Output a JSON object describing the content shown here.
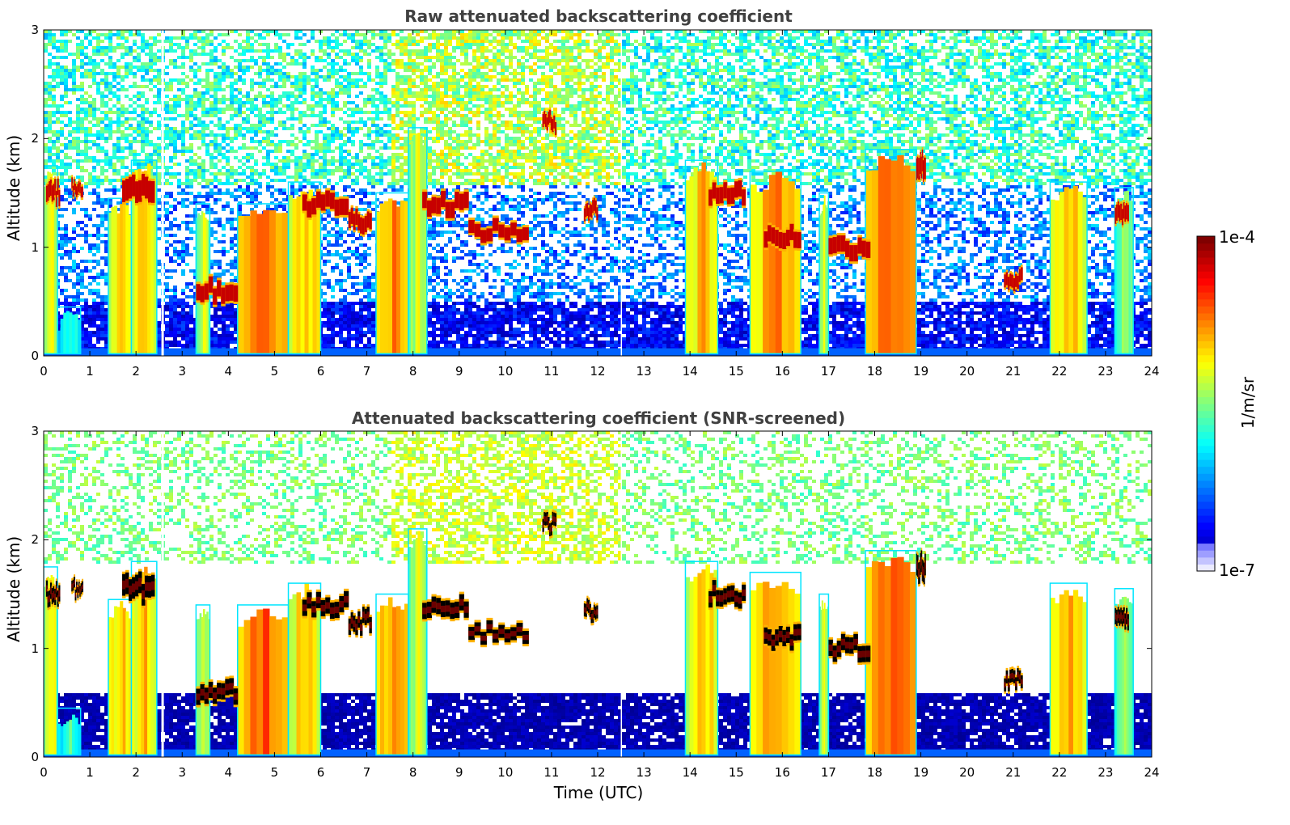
{
  "chart_data": [
    {
      "type": "heatmap",
      "title": "Raw attenuated backscattering coefficient",
      "xlabel": "",
      "ylabel": "Altitude (km)",
      "xlim": [
        0,
        24
      ],
      "ylim": [
        0,
        3
      ],
      "xticks": [
        "0",
        "1",
        "2",
        "3",
        "4",
        "5",
        "6",
        "7",
        "8",
        "9",
        "10",
        "11",
        "12",
        "13",
        "14",
        "15",
        "16",
        "17",
        "18",
        "19",
        "20",
        "21",
        "22",
        "23",
        "24"
      ],
      "yticks": [
        "0",
        "1",
        "2",
        "3"
      ],
      "screened": false,
      "columns": [
        {
          "t0": 0.0,
          "t1": 0.3,
          "top": 1.75,
          "i": 0.65
        },
        {
          "t0": 0.3,
          "t1": 0.8,
          "top": 0.45,
          "i": 0.45
        },
        {
          "t0": 1.4,
          "t1": 1.9,
          "top": 1.45,
          "i": 0.7
        },
        {
          "t0": 1.9,
          "t1": 2.45,
          "top": 1.8,
          "i": 0.7
        },
        {
          "t0": 3.3,
          "t1": 3.6,
          "top": 1.4,
          "i": 0.6
        },
        {
          "t0": 4.2,
          "t1": 5.3,
          "top": 1.4,
          "i": 0.8
        },
        {
          "t0": 5.3,
          "t1": 6.0,
          "top": 1.6,
          "i": 0.7
        },
        {
          "t0": 7.2,
          "t1": 7.9,
          "top": 1.5,
          "i": 0.75
        },
        {
          "t0": 7.9,
          "t1": 8.3,
          "top": 2.1,
          "i": 0.6
        },
        {
          "t0": 13.9,
          "t1": 14.6,
          "top": 1.8,
          "i": 0.7
        },
        {
          "t0": 15.3,
          "t1": 16.4,
          "top": 1.7,
          "i": 0.75
        },
        {
          "t0": 16.8,
          "t1": 17.0,
          "top": 1.5,
          "i": 0.6
        },
        {
          "t0": 17.8,
          "t1": 18.9,
          "top": 1.9,
          "i": 0.8
        },
        {
          "t0": 21.8,
          "t1": 22.6,
          "top": 1.6,
          "i": 0.7
        },
        {
          "t0": 23.2,
          "t1": 23.6,
          "top": 1.55,
          "i": 0.55
        }
      ],
      "layers": [
        {
          "t0": 0.05,
          "t1": 0.35,
          "alt": 1.5,
          "h": 0.15
        },
        {
          "t0": 0.6,
          "t1": 0.85,
          "alt": 1.55,
          "h": 0.1
        },
        {
          "t0": 1.7,
          "t1": 2.4,
          "alt": 1.55,
          "h": 0.2
        },
        {
          "t0": 3.3,
          "t1": 4.2,
          "alt": 0.6,
          "h": 0.15
        },
        {
          "t0": 5.6,
          "t1": 6.6,
          "alt": 1.4,
          "h": 0.15
        },
        {
          "t0": 6.6,
          "t1": 7.1,
          "alt": 1.25,
          "h": 0.15
        },
        {
          "t0": 8.2,
          "t1": 9.2,
          "alt": 1.4,
          "h": 0.15
        },
        {
          "t0": 9.2,
          "t1": 10.5,
          "alt": 1.15,
          "h": 0.12
        },
        {
          "t0": 10.8,
          "t1": 11.1,
          "alt": 2.15,
          "h": 0.12
        },
        {
          "t0": 11.7,
          "t1": 12.0,
          "alt": 1.35,
          "h": 0.12
        },
        {
          "t0": 14.4,
          "t1": 15.2,
          "alt": 1.5,
          "h": 0.15
        },
        {
          "t0": 15.6,
          "t1": 16.4,
          "alt": 1.1,
          "h": 0.15
        },
        {
          "t0": 17.0,
          "t1": 17.9,
          "alt": 1.0,
          "h": 0.15
        },
        {
          "t0": 18.9,
          "t1": 19.1,
          "alt": 1.75,
          "h": 0.2
        },
        {
          "t0": 20.8,
          "t1": 21.2,
          "alt": 0.7,
          "h": 0.12
        },
        {
          "t0": 23.2,
          "t1": 23.5,
          "alt": 1.3,
          "h": 0.15
        }
      ]
    },
    {
      "type": "heatmap",
      "title": "Attenuated backscattering coefficient (SNR-screened)",
      "xlabel": "Time (UTC)",
      "ylabel": "Altitude (km)",
      "xlim": [
        0,
        24
      ],
      "ylim": [
        0,
        3
      ],
      "xticks": [
        "0",
        "1",
        "2",
        "3",
        "4",
        "5",
        "6",
        "7",
        "8",
        "9",
        "10",
        "11",
        "12",
        "13",
        "14",
        "15",
        "16",
        "17",
        "18",
        "19",
        "20",
        "21",
        "22",
        "23",
        "24"
      ],
      "yticks": [
        "0",
        "1",
        "2",
        "3"
      ],
      "screened": true,
      "columns": [
        {
          "t0": 0.0,
          "t1": 0.3,
          "top": 1.75,
          "i": 0.65
        },
        {
          "t0": 0.3,
          "t1": 0.8,
          "top": 0.45,
          "i": 0.45
        },
        {
          "t0": 1.4,
          "t1": 1.9,
          "top": 1.45,
          "i": 0.7
        },
        {
          "t0": 1.9,
          "t1": 2.45,
          "top": 1.8,
          "i": 0.7
        },
        {
          "t0": 3.3,
          "t1": 3.6,
          "top": 1.4,
          "i": 0.6
        },
        {
          "t0": 4.2,
          "t1": 5.3,
          "top": 1.4,
          "i": 0.8
        },
        {
          "t0": 5.3,
          "t1": 6.0,
          "top": 1.6,
          "i": 0.7
        },
        {
          "t0": 7.2,
          "t1": 7.9,
          "top": 1.5,
          "i": 0.75
        },
        {
          "t0": 7.9,
          "t1": 8.3,
          "top": 2.1,
          "i": 0.6
        },
        {
          "t0": 13.9,
          "t1": 14.6,
          "top": 1.8,
          "i": 0.7
        },
        {
          "t0": 15.3,
          "t1": 16.4,
          "top": 1.7,
          "i": 0.75
        },
        {
          "t0": 16.8,
          "t1": 17.0,
          "top": 1.5,
          "i": 0.6
        },
        {
          "t0": 17.8,
          "t1": 18.9,
          "top": 1.9,
          "i": 0.8
        },
        {
          "t0": 21.8,
          "t1": 22.6,
          "top": 1.6,
          "i": 0.7
        },
        {
          "t0": 23.2,
          "t1": 23.6,
          "top": 1.55,
          "i": 0.55
        }
      ],
      "layers": [
        {
          "t0": 0.05,
          "t1": 0.35,
          "alt": 1.5,
          "h": 0.15
        },
        {
          "t0": 0.6,
          "t1": 0.85,
          "alt": 1.55,
          "h": 0.1
        },
        {
          "t0": 1.7,
          "t1": 2.4,
          "alt": 1.55,
          "h": 0.2
        },
        {
          "t0": 3.3,
          "t1": 4.2,
          "alt": 0.6,
          "h": 0.15
        },
        {
          "t0": 5.6,
          "t1": 6.6,
          "alt": 1.4,
          "h": 0.15
        },
        {
          "t0": 6.6,
          "t1": 7.1,
          "alt": 1.25,
          "h": 0.15
        },
        {
          "t0": 8.2,
          "t1": 9.2,
          "alt": 1.4,
          "h": 0.15
        },
        {
          "t0": 9.2,
          "t1": 10.5,
          "alt": 1.15,
          "h": 0.12
        },
        {
          "t0": 10.8,
          "t1": 11.1,
          "alt": 2.15,
          "h": 0.12
        },
        {
          "t0": 11.7,
          "t1": 12.0,
          "alt": 1.35,
          "h": 0.12
        },
        {
          "t0": 14.4,
          "t1": 15.2,
          "alt": 1.5,
          "h": 0.15
        },
        {
          "t0": 15.6,
          "t1": 16.4,
          "alt": 1.1,
          "h": 0.15
        },
        {
          "t0": 17.0,
          "t1": 17.9,
          "alt": 1.0,
          "h": 0.15
        },
        {
          "t0": 18.9,
          "t1": 19.1,
          "alt": 1.75,
          "h": 0.2
        },
        {
          "t0": 20.8,
          "t1": 21.2,
          "alt": 0.7,
          "h": 0.12
        },
        {
          "t0": 23.2,
          "t1": 23.5,
          "alt": 1.3,
          "h": 0.15
        }
      ]
    }
  ],
  "colorbar": {
    "label": "1/m/sr",
    "max_label": "1e-4",
    "min_label": "1e-7",
    "colormap": "jet",
    "scale": "log"
  },
  "colors": {
    "title_text": "#404040",
    "background": "#ffffff"
  }
}
